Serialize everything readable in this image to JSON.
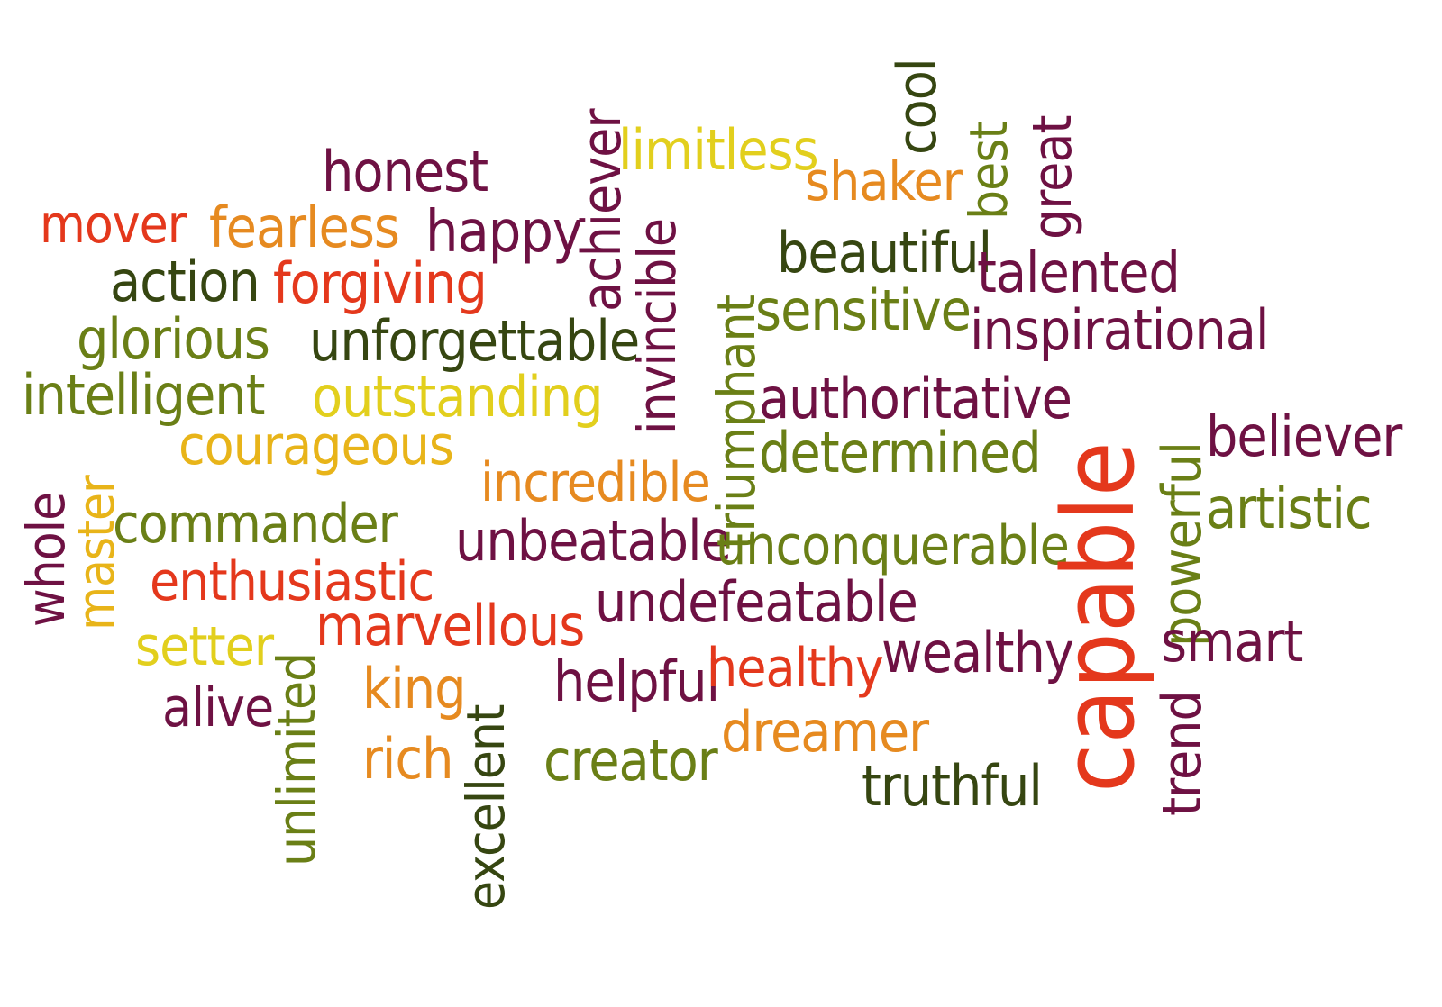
{
  "colors": {
    "maroon": "#6e1143",
    "darkgreen": "#364611",
    "olive": "#6a7f16",
    "yellow": "#e2cf1d",
    "orange": "#e68a20",
    "red": "#e4381c",
    "darkred": "#a3141c"
  },
  "words": {
    "honest": "honest",
    "mover": "mover",
    "fearless": "fearless",
    "happy": "happy",
    "action": "action",
    "forgiving": "forgiving",
    "glorious": "glorious",
    "unforgettable": "unforgettable",
    "intelligent": "intelligent",
    "outstanding": "outstanding",
    "courageous": "courageous",
    "whole": "whole",
    "master": "master",
    "commander": "commander",
    "enthusiastic": "enthusiastic",
    "setter": "setter",
    "marvellous": "marvellous",
    "unlimited": "unlimited",
    "alive": "alive",
    "king": "king",
    "rich": "rich",
    "excellent": "excellent",
    "achiever": "achiever",
    "limitless": "limitless",
    "invincible": "invincible",
    "incredible": "incredible",
    "unbeatable": "unbeatable",
    "undefeatable": "undefeatable",
    "helpful": "helpful",
    "healthy": "healthy",
    "creator": "creator",
    "dreamer": "dreamer",
    "truthful": "truthful",
    "wealthy": "wealthy",
    "triumphant": "triumphant",
    "shaker": "shaker",
    "cool": "cool",
    "best": "best",
    "great": "great",
    "beautiful": "beautiful",
    "talented": "talented",
    "sensitive": "sensitive",
    "inspirational": "inspirational",
    "authoritative": "authoritative",
    "determined": "determined",
    "unconquerable": "unconquerable",
    "capable": "capable",
    "powerful": "powerful",
    "trend": "trend",
    "believer": "believer",
    "artistic": "artistic",
    "smart": "smart"
  }
}
